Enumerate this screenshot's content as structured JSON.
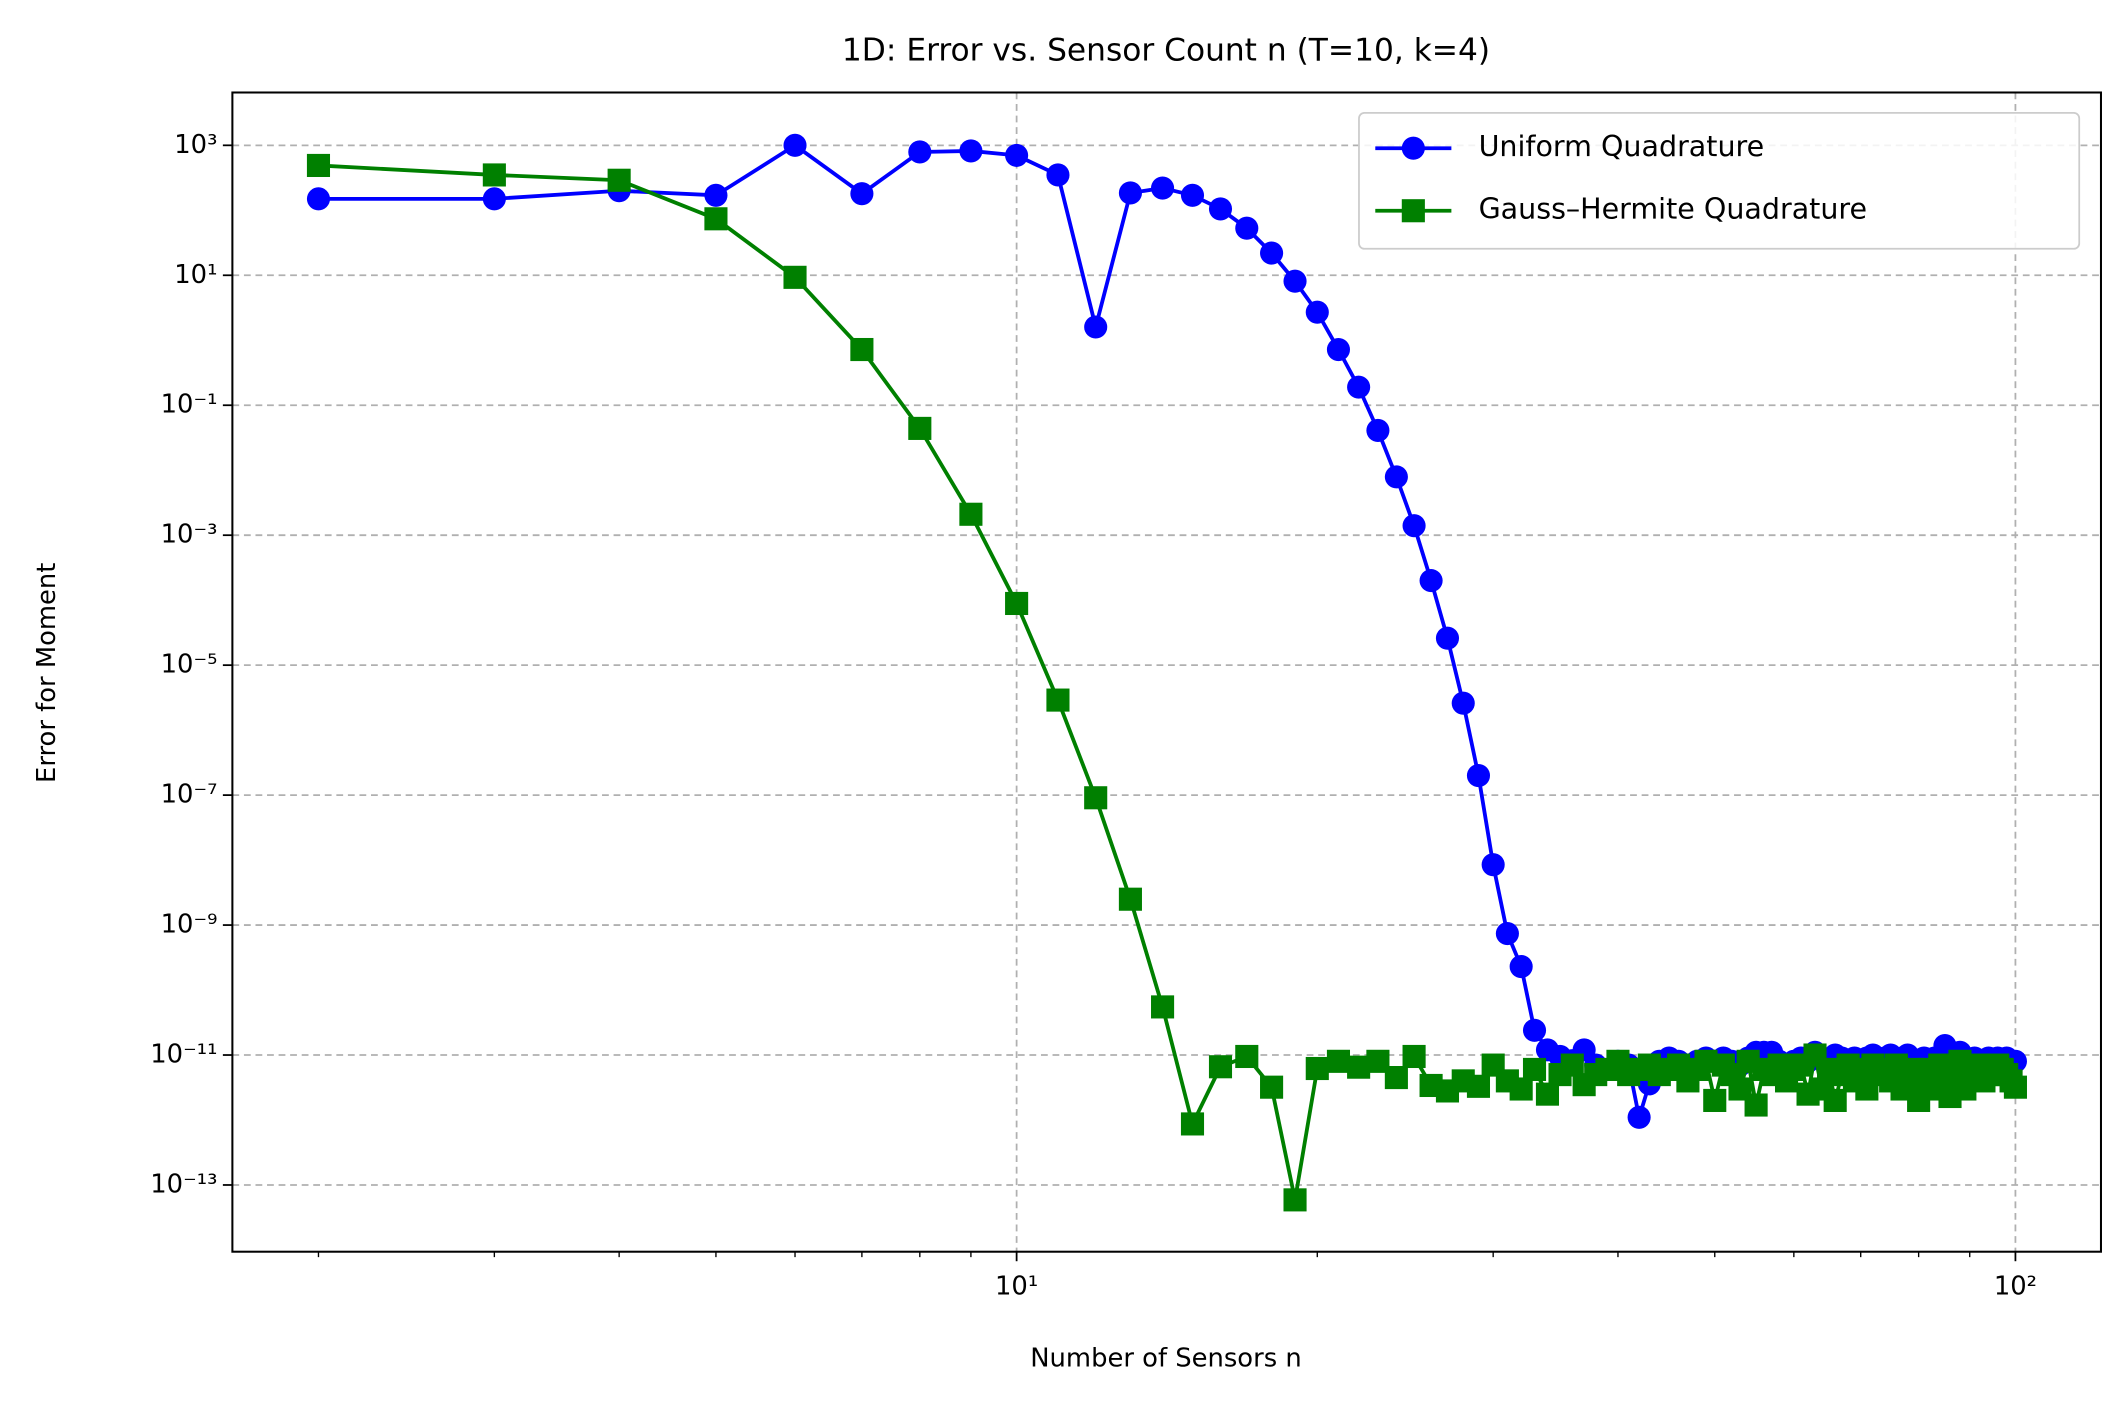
{
  "chart_data": {
    "type": "line",
    "title": "1D: Error vs. Sensor Count n (T=10, k=4)",
    "xlabel": "Number of Sensors n",
    "ylabel": "Error for Moment",
    "xscale": "log",
    "yscale": "log",
    "xlim": [
      1.64,
      121.8
    ],
    "ylim": [
      9.4e-15,
      6500
    ],
    "xticks": [
      {
        "value": 10,
        "label": "10¹"
      },
      {
        "value": 100,
        "label": "10²"
      }
    ],
    "xminorticks": [
      2,
      3,
      4,
      5,
      6,
      7,
      8,
      9,
      20,
      30,
      40,
      50,
      60,
      70,
      80,
      90
    ],
    "yticks": [
      {
        "value": 1000,
        "label": "10³"
      },
      {
        "value": 10,
        "label": "10¹"
      },
      {
        "value": 0.1,
        "label": "10⁻¹"
      },
      {
        "value": 0.001,
        "label": "10⁻³"
      },
      {
        "value": 1e-05,
        "label": "10⁻⁵"
      },
      {
        "value": 1e-07,
        "label": "10⁻⁷"
      },
      {
        "value": 1e-09,
        "label": "10⁻⁹"
      },
      {
        "value": 1e-11,
        "label": "10⁻¹¹"
      },
      {
        "value": 1e-13,
        "label": "10⁻¹³"
      }
    ],
    "grid": true,
    "legend": "upper right",
    "x": [
      2,
      3,
      4,
      5,
      6,
      7,
      8,
      9,
      10,
      11,
      12,
      13,
      14,
      15,
      16,
      17,
      18,
      19,
      20,
      21,
      22,
      23,
      24,
      25,
      26,
      27,
      28,
      29,
      30,
      31,
      32,
      33,
      34,
      35,
      36,
      37,
      38,
      39,
      40,
      41,
      42,
      43,
      44,
      45,
      46,
      47,
      48,
      49,
      50,
      51,
      52,
      53,
      54,
      55,
      56,
      57,
      58,
      59,
      60,
      61,
      62,
      63,
      64,
      65,
      66,
      67,
      68,
      69,
      70,
      71,
      72,
      73,
      74,
      75,
      76,
      77,
      78,
      79,
      80,
      81,
      82,
      83,
      84,
      85,
      86,
      87,
      88,
      89,
      90,
      91,
      92,
      93,
      94,
      95,
      96,
      97,
      98,
      99,
      100
    ],
    "series": [
      {
        "name": "Uniform Quadrature",
        "color": "#0000ff",
        "marker": "circle",
        "values": [
          150,
          150,
          200,
          170,
          1000,
          180,
          790,
          820,
          700,
          350,
          1.6,
          185,
          220,
          170,
          105,
          53,
          22,
          8.1,
          2.7,
          0.72,
          0.19,
          0.041,
          0.0079,
          0.0014,
          0.0002,
          2.6e-05,
          2.6e-06,
          2e-07,
          8.5e-09,
          7.4e-10,
          2.3e-10,
          2.4e-11,
          1.2e-11,
          9.5e-12,
          8.2e-12,
          1.2e-11,
          7e-12,
          6e-12,
          8e-12,
          7e-12,
          1.1e-12,
          3.6e-12,
          8e-12,
          9e-12,
          8e-12,
          7e-12,
          8e-12,
          9e-12,
          8e-12,
          9e-12,
          8e-12,
          7e-12,
          9e-12,
          1.1e-11,
          1.1e-11,
          1.1e-11,
          8e-12,
          7e-12,
          8e-12,
          9e-12,
          8e-12,
          1.1e-11,
          9e-12,
          8e-12,
          1e-11,
          9e-12,
          8e-12,
          9e-12,
          7e-12,
          9e-12,
          1e-11,
          8e-12,
          9e-12,
          1e-11,
          8e-12,
          9e-12,
          1e-11,
          8e-12,
          7e-12,
          9e-12,
          8e-12,
          9e-12,
          8e-12,
          1.4e-11,
          9e-12,
          8e-12,
          1.1e-11,
          9e-12,
          8e-12,
          9e-12,
          8e-12,
          7e-12,
          9e-12,
          8e-12,
          9e-12,
          8e-12,
          9e-12,
          8e-12,
          8e-12
        ]
      },
      {
        "name": "Gauss–Hermite Quadrature",
        "color": "#008000",
        "marker": "square",
        "values": [
          490,
          350,
          290,
          74,
          9.3,
          0.72,
          0.044,
          0.0021,
          8.9e-05,
          2.9e-06,
          9.1e-08,
          2.5e-09,
          5.5e-11,
          8.7e-13,
          6.6e-12,
          9.5e-12,
          3.2e-12,
          5.9e-14,
          6.2e-12,
          8e-12,
          6.5e-12,
          8e-12,
          4.5e-12,
          9.5e-12,
          3.4e-12,
          2.8e-12,
          4e-12,
          3.3e-12,
          7e-12,
          4e-12,
          3e-12,
          6e-12,
          2.5e-12,
          5e-12,
          7e-12,
          3.5e-12,
          5e-12,
          6e-12,
          8e-12,
          5e-12,
          6e-12,
          7e-12,
          5e-12,
          6e-12,
          7e-12,
          4e-12,
          6e-12,
          8e-12,
          2e-12,
          7e-12,
          5e-12,
          3e-12,
          8e-12,
          1.7e-12,
          6e-12,
          5e-12,
          7e-12,
          4e-12,
          6e-12,
          7e-12,
          2.5e-12,
          1e-11,
          3e-12,
          6e-12,
          2e-12,
          5e-12,
          7e-12,
          4e-12,
          6e-12,
          3e-12,
          7e-12,
          5e-12,
          6e-12,
          4e-12,
          7e-12,
          3e-12,
          5e-12,
          6e-12,
          2e-12,
          4e-12,
          6e-12,
          3e-12,
          7e-12,
          5e-12,
          2.3e-12,
          6e-12,
          8e-12,
          3e-12,
          5e-12,
          6e-12,
          7e-12,
          4e-12,
          6e-12,
          5e-12,
          7e-12,
          6e-12,
          5e-12,
          4e-12,
          3.2e-12
        ]
      }
    ]
  }
}
